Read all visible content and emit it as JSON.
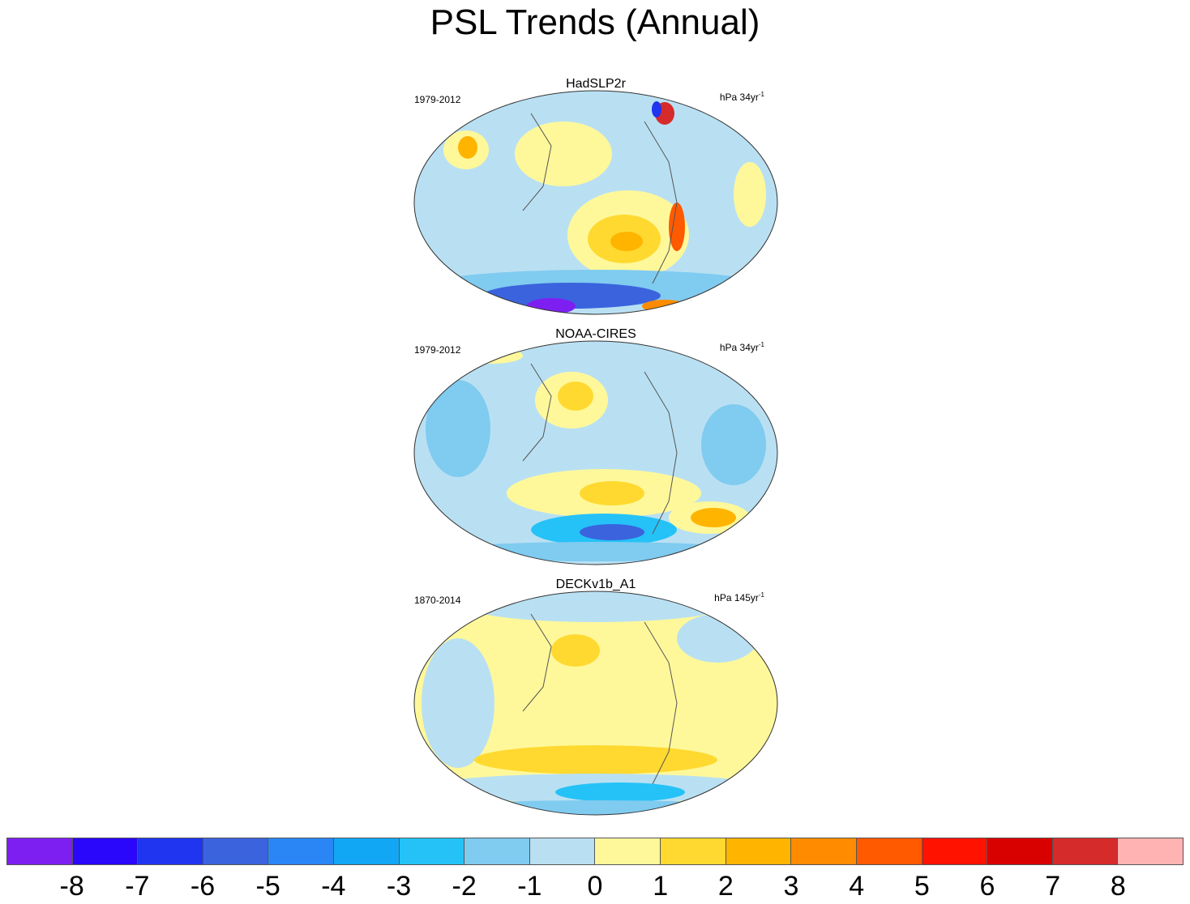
{
  "title": "PSL Trends (Annual)",
  "panels": [
    {
      "name": "HadSLP2r",
      "period": "1979-2012",
      "units_base": "hPa 34yr",
      "units_exp": "-1"
    },
    {
      "name": "NOAA-CIRES",
      "period": "1979-2012",
      "units_base": "hPa 34yr",
      "units_exp": "-1"
    },
    {
      "name": "DECKv1b_A1",
      "period": "1870-2014",
      "units_base": "hPa 145yr",
      "units_exp": "-1"
    }
  ],
  "colorbar": {
    "colors": [
      "#7e1ff2",
      "#2a06fa",
      "#1f35f0",
      "#3a63dd",
      "#2a86f5",
      "#12a7f5",
      "#25c2f7",
      "#80cbf0",
      "#b9e0f2",
      "#fff89b",
      "#ffd930",
      "#ffb400",
      "#ff8b00",
      "#ff5a00",
      "#ff1200",
      "#d90000",
      "#d62b2b",
      "#ffb3b3"
    ],
    "labels": [
      "-8",
      "-7",
      "-6",
      "-5",
      "-4",
      "-3",
      "-2",
      "-1",
      "0",
      "1",
      "2",
      "3",
      "4",
      "5",
      "6",
      "7",
      "8"
    ]
  }
}
